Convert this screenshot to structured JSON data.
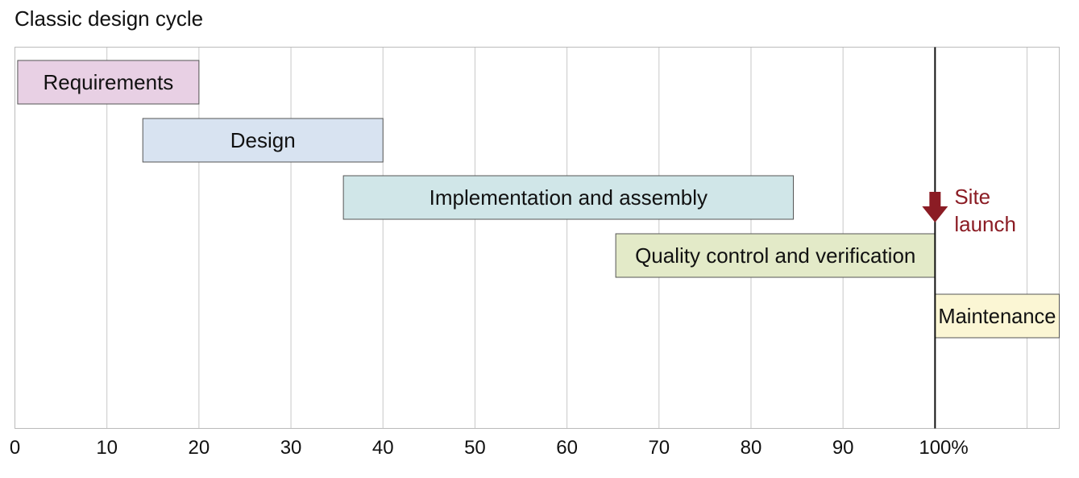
{
  "chart_data": {
    "type": "gantt",
    "title": "Classic design cycle",
    "xlabel": "",
    "ylabel": "",
    "xlim": [
      0,
      113.5
    ],
    "grid": true,
    "x_ticks": [
      "0",
      "10",
      "20",
      "30",
      "40",
      "50",
      "60",
      "70",
      "80",
      "90",
      "100%"
    ],
    "x_tick_values": [
      0,
      10,
      20,
      30,
      40,
      50,
      60,
      70,
      80,
      90,
      100
    ],
    "tasks": [
      {
        "name": "Requirements",
        "start": 0.3,
        "end": 20,
        "color": "#e8d0e4"
      },
      {
        "name": "Design",
        "start": 13.9,
        "end": 40,
        "color": "#d8e3f1"
      },
      {
        "name": "Implementation and assembly",
        "start": 35.7,
        "end": 84.6,
        "color": "#d0e6e8"
      },
      {
        "name": "Quality control and verification",
        "start": 65.3,
        "end": 100,
        "color": "#e3eac8"
      },
      {
        "name": "Maintenance",
        "start": 100,
        "end": 113.5,
        "color": "#fbf6d4"
      }
    ],
    "annotation": {
      "text_line1": "Site",
      "text_line2": "launch",
      "x": 100,
      "color": "#8b1c24"
    }
  }
}
